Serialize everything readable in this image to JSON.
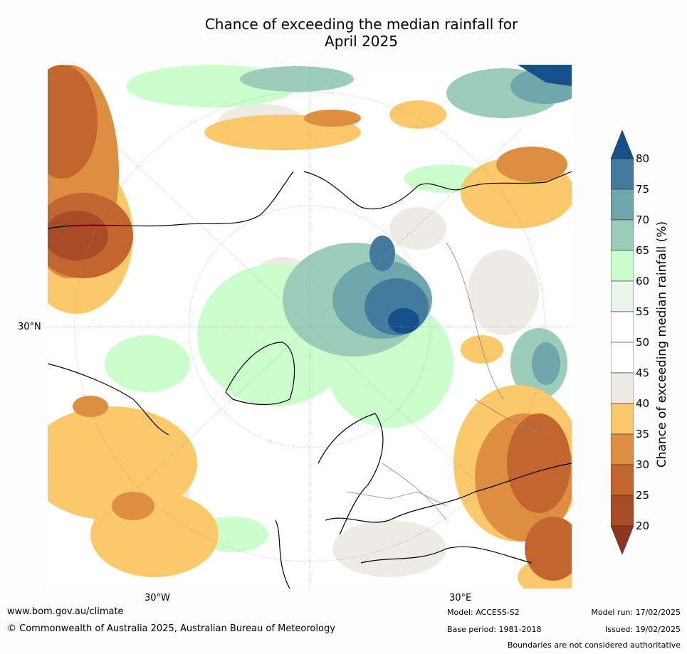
{
  "title_line1": "Chance of exceeding the median rainfall for",
  "title_line2": "April 2025",
  "map": {
    "lat_label": "30°N",
    "lon_labels": [
      "30°W",
      "30°E"
    ],
    "land_fill": "#ffffff",
    "ocean_fill": "#ffffff"
  },
  "colorbar": {
    "label": "Chance of exceeding median rainfall (%)",
    "ticks": [
      "80",
      "75",
      "70",
      "65",
      "60",
      "55",
      "50",
      "45",
      "40",
      "35",
      "30",
      "25",
      "20"
    ],
    "bins": [
      {
        "range": ">80",
        "color": "#15508b"
      },
      {
        "range": "75-80",
        "color": "#427b9e"
      },
      {
        "range": "70-75",
        "color": "#6fa6ab"
      },
      {
        "range": "65-70",
        "color": "#9bcdb8"
      },
      {
        "range": "60-65",
        "color": "#ccfdcd"
      },
      {
        "range": "55-60",
        "color": "#ebf4ea"
      },
      {
        "range": "50-55",
        "color": "#ffffff"
      },
      {
        "range": "45-50",
        "color": "#ffffff"
      },
      {
        "range": "40-45",
        "color": "#eeeae5"
      },
      {
        "range": "35-40",
        "color": "#fbc969"
      },
      {
        "range": "30-35",
        "color": "#de8e40"
      },
      {
        "range": "25-30",
        "color": "#c3652f"
      },
      {
        "range": "20-25",
        "color": "#a84b27"
      },
      {
        "range": "<20",
        "color": "#8e3520"
      }
    ]
  },
  "footer": {
    "website": "www.bom.gov.au/climate",
    "copyright": "© Commonwealth of Australia 2025, Australian Bureau of Meteorology",
    "model": "Model: ACCESS-S2",
    "base_period": "Base period: 1981-2018",
    "model_run": "Model run: 17/02/2025",
    "issued": "Issued: 19/02/2025",
    "disclaimer": "Boundaries are not considered authoritative"
  }
}
